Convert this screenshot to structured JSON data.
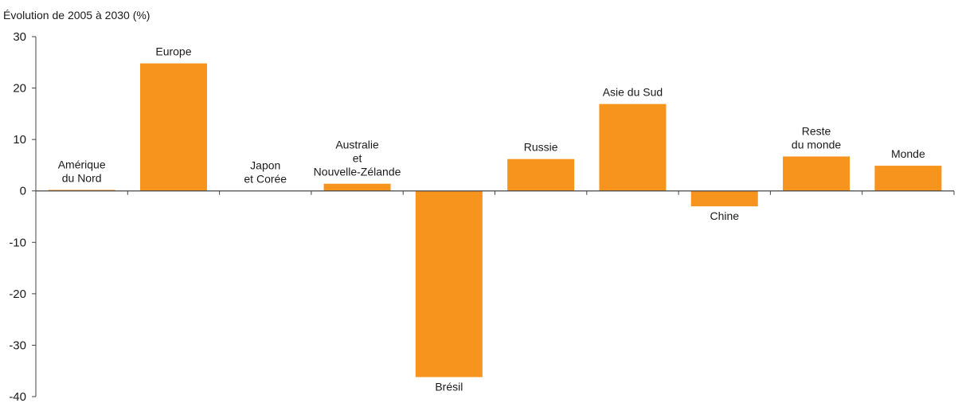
{
  "chart_data": {
    "type": "bar",
    "ylabel": "Évolution de 2005 à 2030 (%)",
    "ylim": [
      -40,
      30
    ],
    "yticks": [
      "30",
      "20",
      "10",
      "0",
      "-10",
      "-20",
      "-30",
      "-40"
    ],
    "grid": false,
    "categories": [
      [
        "Amérique",
        "du Nord"
      ],
      [
        "Europe"
      ],
      [
        "Japon",
        "et Corée"
      ],
      [
        "Australie",
        "et",
        "Nouvelle-Zélande"
      ],
      [
        "Brésil"
      ],
      [
        "Russie"
      ],
      [
        "Asie du Sud"
      ],
      [
        "Chine"
      ],
      [
        "Reste",
        "du monde"
      ],
      [
        "Monde"
      ]
    ],
    "values": [
      0.2,
      24.8,
      0,
      1.4,
      -36.2,
      6.2,
      16.9,
      -3.0,
      6.7,
      4.9
    ],
    "colors": {
      "bar": "#f7941d",
      "axis": "#444444"
    }
  }
}
